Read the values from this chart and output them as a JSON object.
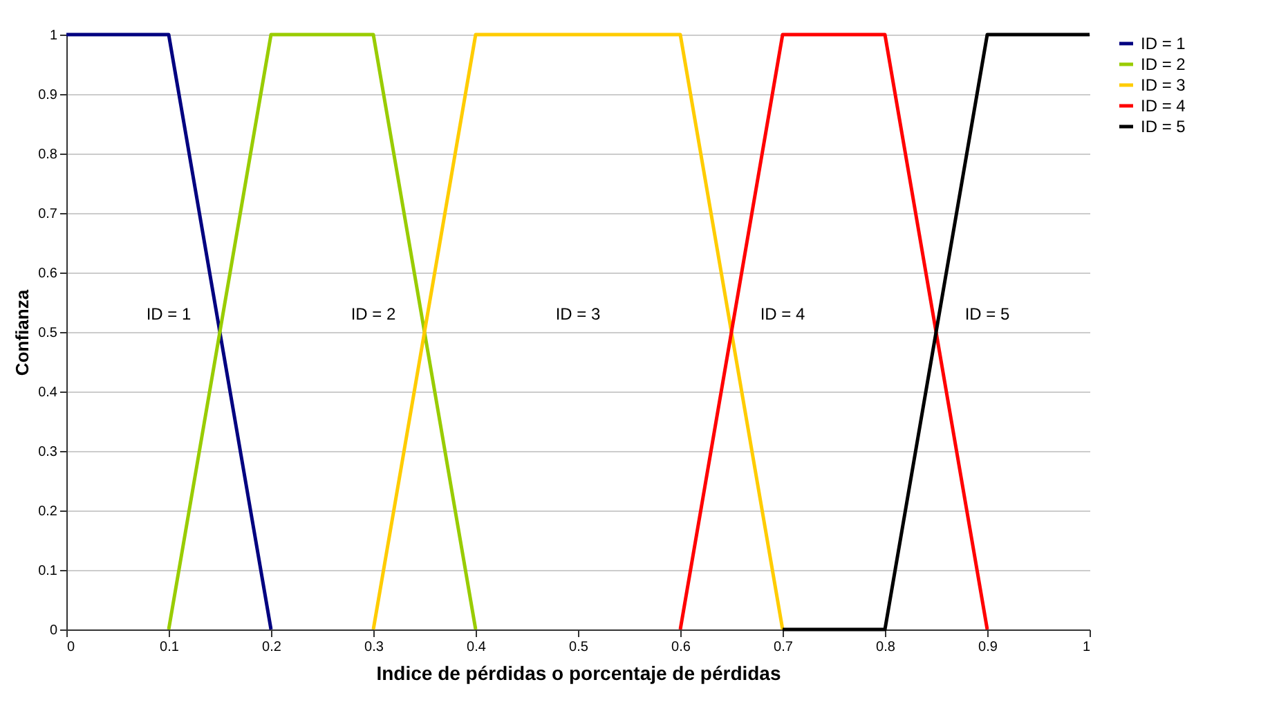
{
  "chart_data": {
    "type": "line",
    "xlabel": "Indice de pérdidas o porcentaje de pérdidas",
    "ylabel": "Confianza",
    "series": [
      {
        "name": "ID = 1",
        "color": "#000080",
        "x": [
          0,
          0.1,
          0.2
        ],
        "values": [
          1,
          1,
          0
        ]
      },
      {
        "name": "ID = 2",
        "color": "#99cc00",
        "x": [
          0.1,
          0.2,
          0.3,
          0.4
        ],
        "values": [
          0,
          1,
          1,
          0
        ]
      },
      {
        "name": "ID = 3",
        "color": "#ffcc00",
        "x": [
          0.3,
          0.4,
          0.6,
          0.7
        ],
        "values": [
          0,
          1,
          1,
          0
        ]
      },
      {
        "name": "ID = 4",
        "color": "#ff0000",
        "x": [
          0.6,
          0.7,
          0.8,
          0.9
        ],
        "values": [
          0,
          1,
          1,
          0
        ]
      },
      {
        "name": "ID = 5",
        "color": "#000000",
        "x": [
          0.7,
          0.8,
          0.9,
          1
        ],
        "values": [
          0,
          0,
          1,
          1
        ]
      }
    ],
    "annotations": [
      "ID = 1",
      "ID = 2",
      "ID = 3",
      "ID = 4",
      "ID = 5"
    ],
    "xlim": [
      0,
      1
    ],
    "ylim": [
      0,
      1
    ],
    "xticks": [
      0,
      0.1,
      0.2,
      0.3,
      0.4,
      0.5,
      0.6,
      0.7,
      0.8,
      0.9,
      1
    ],
    "yticks": [
      0,
      0.1,
      0.2,
      0.3,
      0.4,
      0.5,
      0.6,
      0.7,
      0.8,
      0.9,
      1
    ],
    "grid": "y",
    "legend": "right",
    "marker": "none",
    "line_style": "solid"
  }
}
